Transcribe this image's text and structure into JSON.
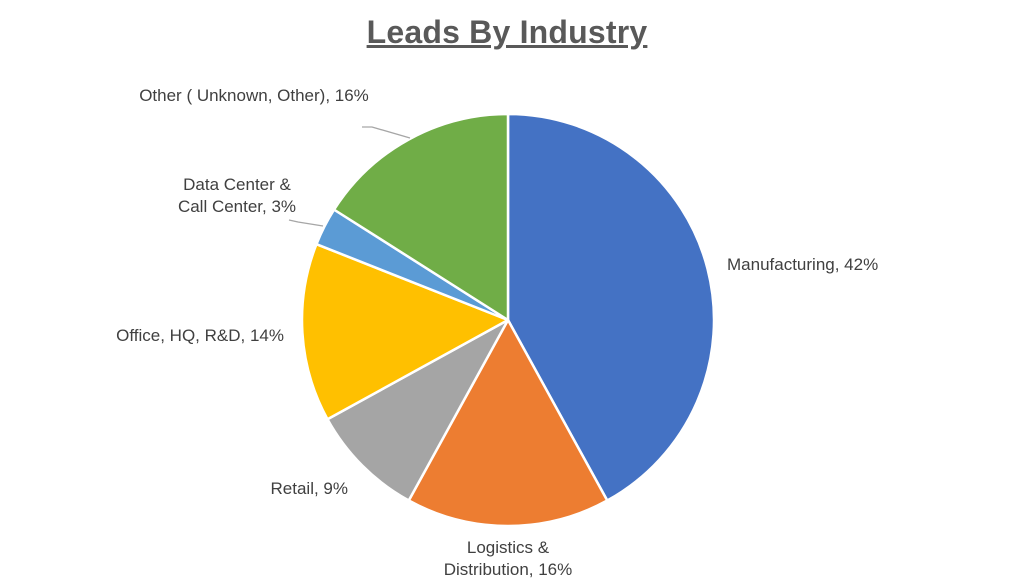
{
  "chart_data": {
    "type": "pie",
    "title": "Leads By Industry",
    "slices": [
      {
        "name": "Manufacturing",
        "value": 42,
        "pct_label": "42%",
        "color": "#4472C4",
        "label_lines": [
          "Manufacturing, 42%"
        ]
      },
      {
        "name": "Logistics & Distribution",
        "value": 16,
        "pct_label": "16%",
        "color": "#ED7D31",
        "label_lines": [
          "Logistics &",
          "Distribution, 16%"
        ]
      },
      {
        "name": "Retail",
        "value": 9,
        "pct_label": "9%",
        "color": "#A5A5A5",
        "label_lines": [
          "Retail, 9%"
        ]
      },
      {
        "name": "Office, HQ, R&D",
        "value": 14,
        "pct_label": "14%",
        "color": "#FFC000",
        "label_lines": [
          "Office, HQ, R&D, 14%"
        ]
      },
      {
        "name": "Data Center & Call Center",
        "value": 3,
        "pct_label": "3%",
        "color": "#5B9BD5",
        "label_lines": [
          "Data Center &",
          "Call Center, 3%"
        ]
      },
      {
        "name": "Other ( Unknown, Other)",
        "value": 16,
        "pct_label": "16%",
        "color": "#70AD47",
        "label_lines": [
          "Other ( Unknown, Other), 16%"
        ]
      }
    ],
    "start_angle_deg": 0,
    "direction": "clockwise"
  }
}
